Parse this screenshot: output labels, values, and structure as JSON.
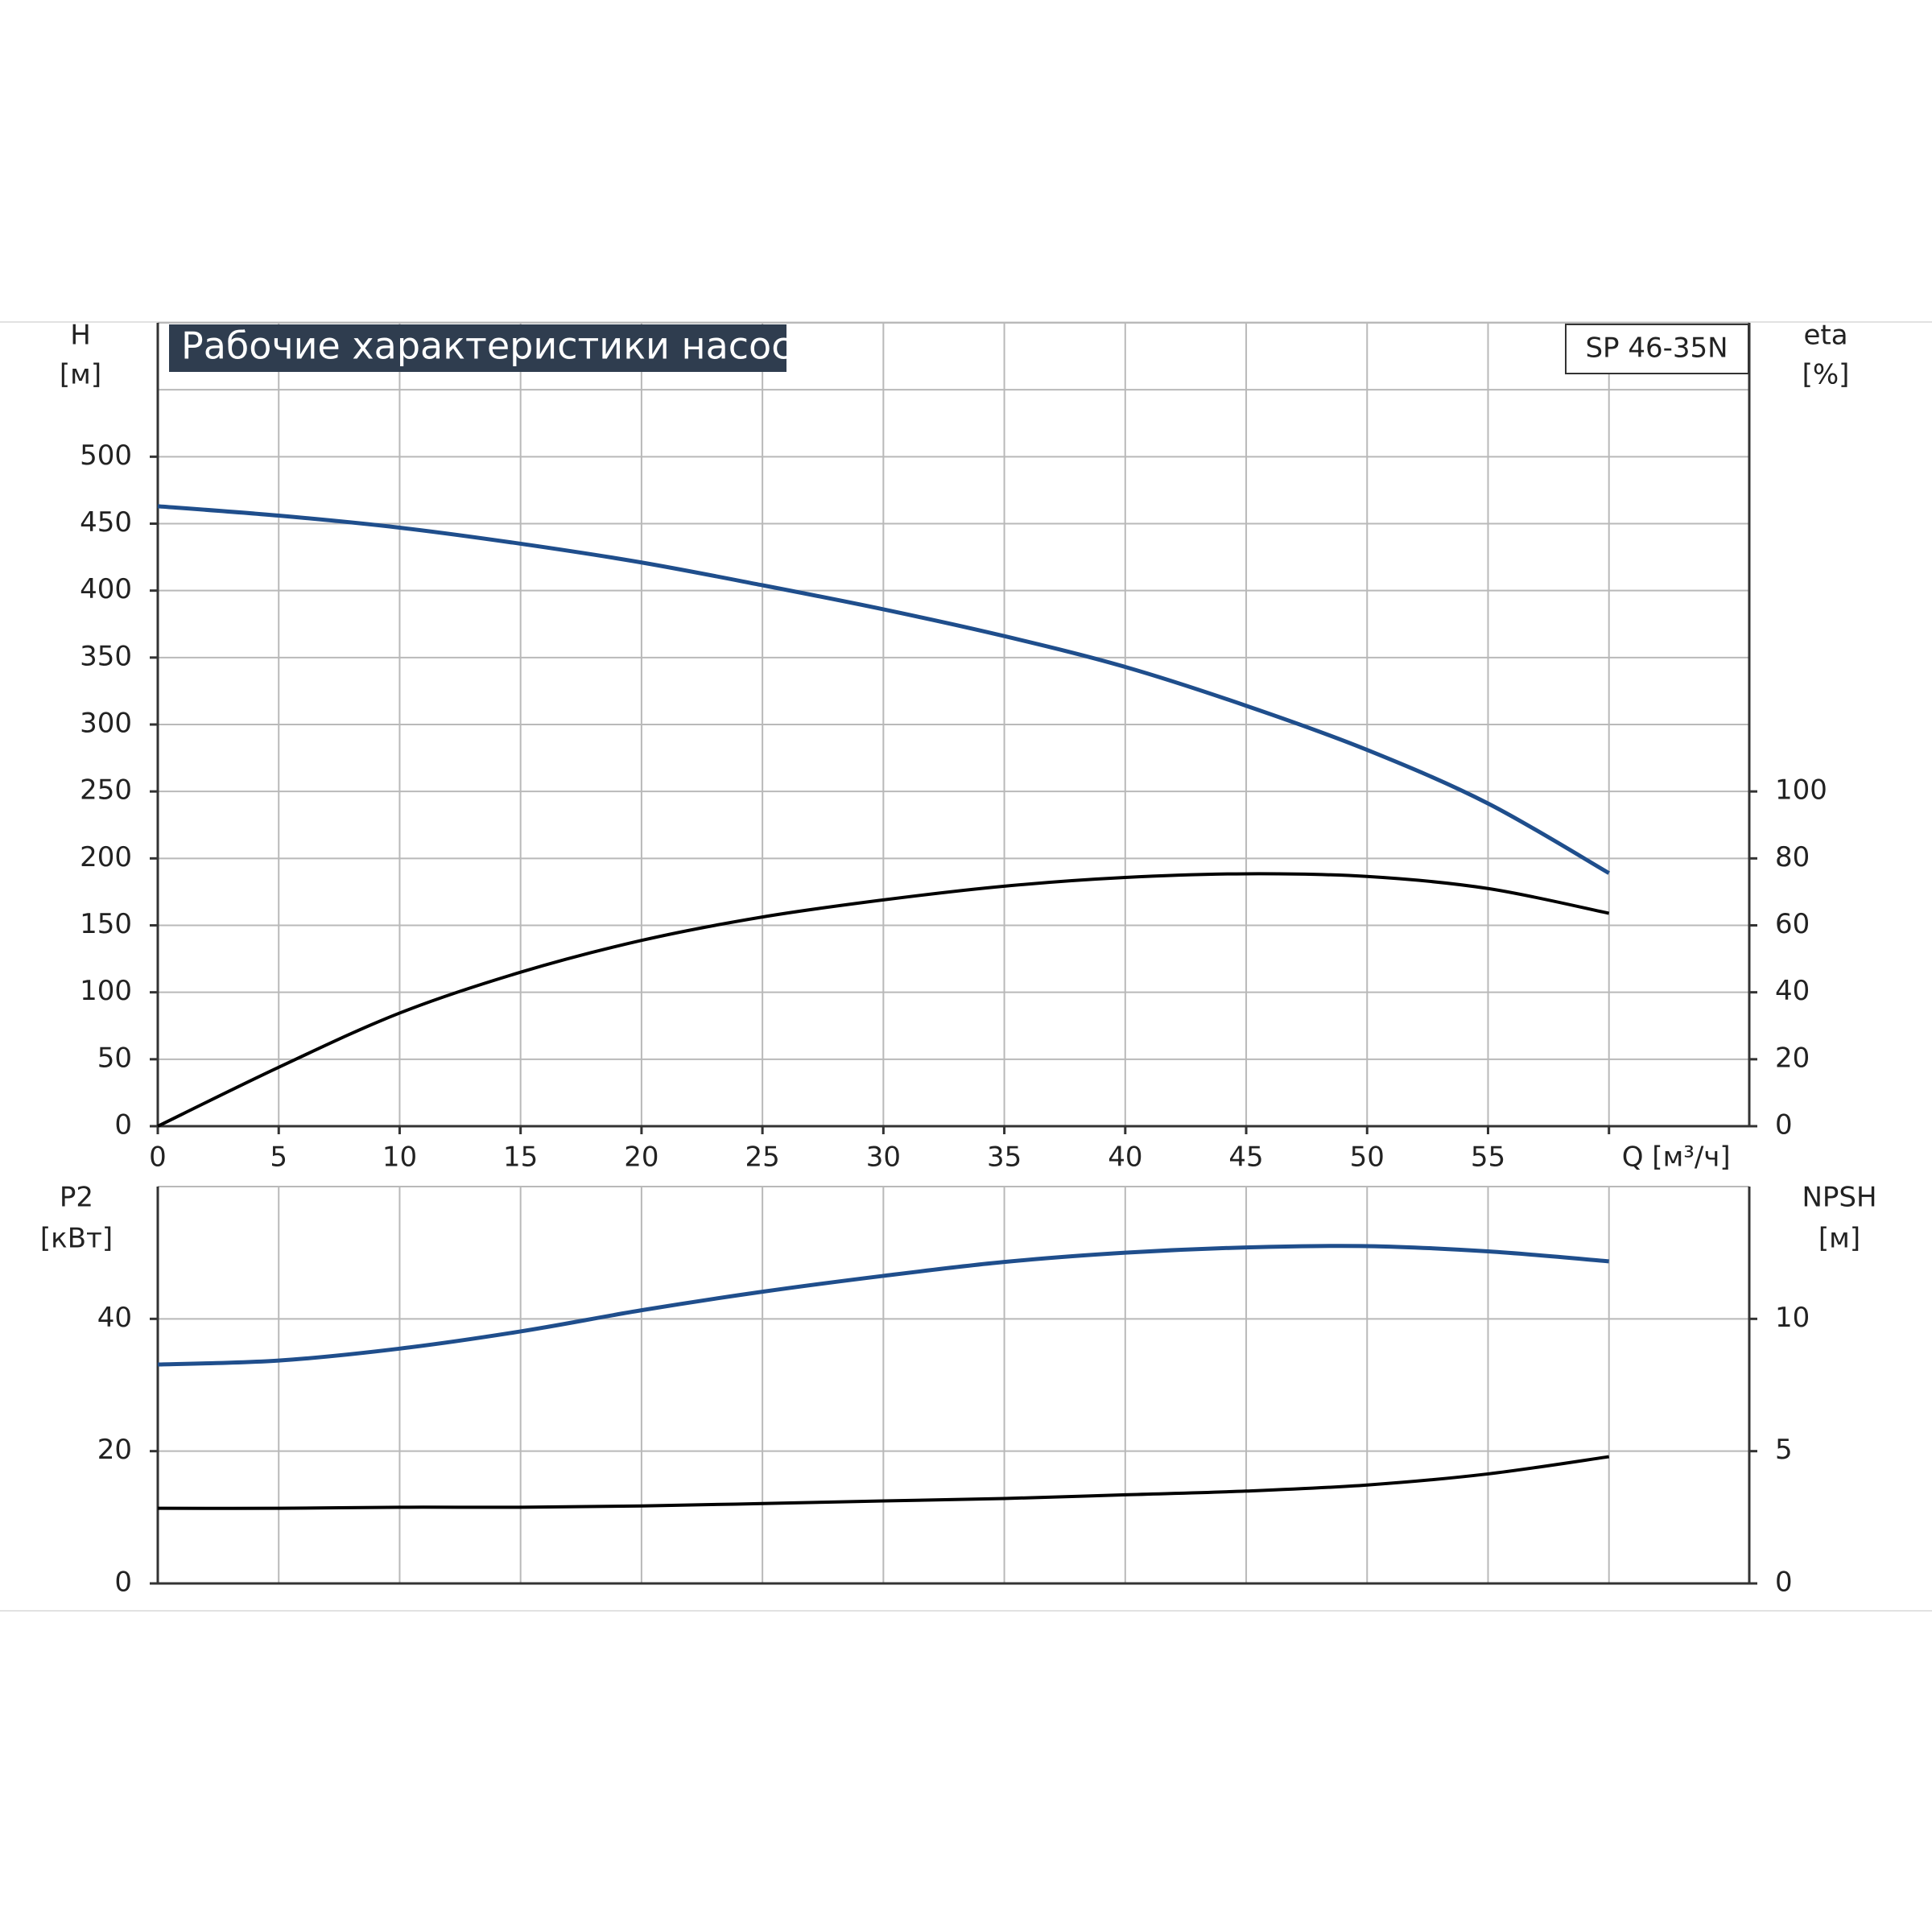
{
  "chart_data": [
    {
      "type": "line",
      "title": "Рабочие характеристики насоса",
      "model": "SP 46-35N",
      "ylabel": "H",
      "yunit": "[м]",
      "y2label": "eta",
      "y2unit": "[%]",
      "x": [
        0,
        5,
        10,
        15,
        20,
        25,
        30,
        35,
        40,
        45,
        50,
        55,
        60
      ],
      "xlim": [
        0,
        65.8
      ],
      "xticks": [
        0,
        5,
        10,
        15,
        20,
        25,
        30,
        35,
        40,
        45,
        50,
        55,
        {
          "value": 60,
          "label": "Q [м³/ч]"
        }
      ],
      "ylim": [
        0,
        600
      ],
      "yticks": [
        0,
        50,
        100,
        150,
        200,
        250,
        300,
        350,
        400,
        450,
        500
      ],
      "ygrid": [
        550
      ],
      "y2lim": [
        0,
        240
      ],
      "y2ticks": [
        0,
        20,
        40,
        60,
        80,
        100
      ],
      "grid": true,
      "series": [
        {
          "color": "#1f4e8c",
          "values": [
            463,
            456,
            447,
            435,
            421,
            404,
            386,
            366,
            343,
            314,
            281,
            241,
            189
          ]
        },
        {
          "color": "#000000",
          "axis": "y2",
          "values": [
            0,
            17.6,
            33.8,
            46,
            55.5,
            62.5,
            67.6,
            71.7,
            74.3,
            75.4,
            74.6,
            71,
            63.6
          ]
        }
      ]
    },
    {
      "type": "line",
      "ylabel": "P2",
      "yunit": "[кВт]",
      "y2label": "NPSH",
      "y2unit": "[м]",
      "x": [
        0,
        5,
        10,
        15,
        20,
        25,
        30,
        35,
        40,
        45,
        50,
        55,
        60
      ],
      "xlim": [
        0,
        65.8
      ],
      "xgrid": [
        5,
        10,
        15,
        20,
        25,
        30,
        35,
        40,
        45,
        50,
        55,
        60
      ],
      "ylim": [
        0,
        60
      ],
      "yticks": [
        0,
        20,
        40
      ],
      "y2lim": [
        0,
        15
      ],
      "y2ticks": [
        0,
        5,
        10
      ],
      "grid": true,
      "series": [
        {
          "color": "#1f4e8c",
          "values": [
            33.1,
            33.7,
            35.5,
            38.1,
            41.3,
            44.1,
            46.5,
            48.6,
            50.0,
            50.8,
            51.0,
            50.2,
            48.7
          ]
        },
        {
          "color": "#000000",
          "axis": "y2",
          "values": [
            2.84,
            2.84,
            2.88,
            2.88,
            2.93,
            3.02,
            3.12,
            3.21,
            3.35,
            3.49,
            3.72,
            4.14,
            4.79
          ]
        }
      ]
    }
  ]
}
